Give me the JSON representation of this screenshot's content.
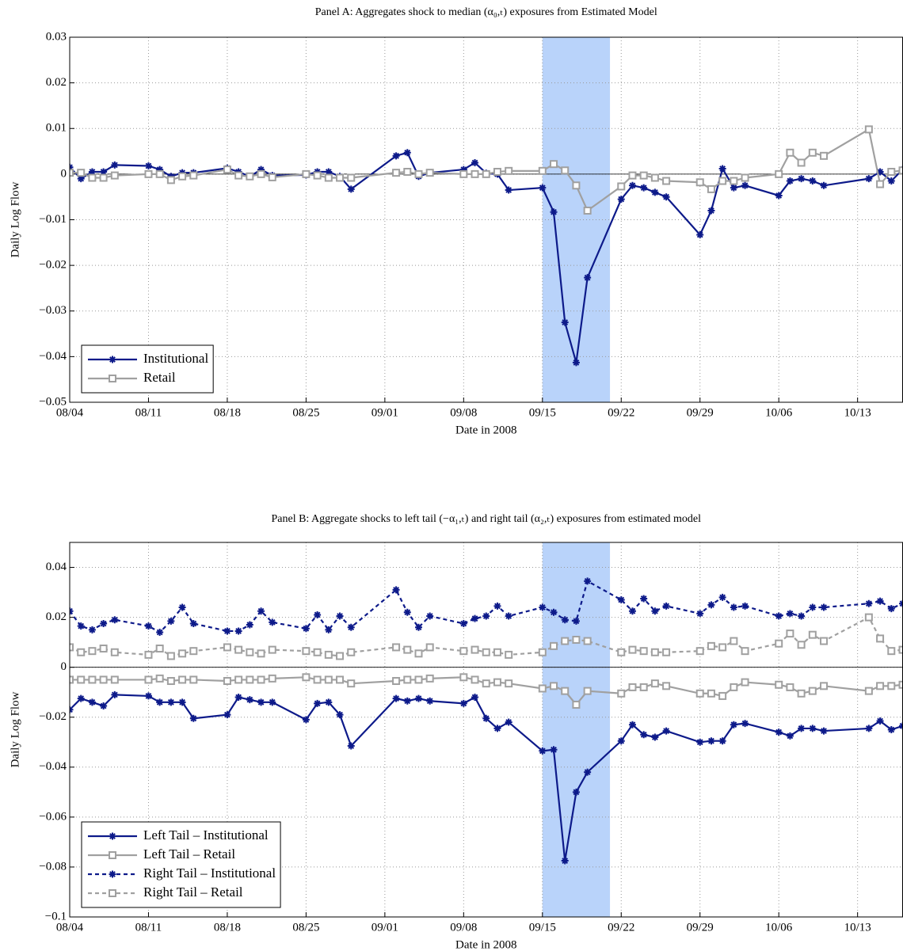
{
  "chart_data": [
    {
      "type": "line",
      "title": "Panel A: Aggregates shock to median (α₀,ₜ) exposures from Estimated Model",
      "x_label": "Date in 2008",
      "y_label": "Daily Log Flow",
      "x": [
        0,
        1,
        2,
        3,
        4,
        7,
        8,
        9,
        10,
        11,
        14,
        15,
        16,
        17,
        18,
        21,
        22,
        23,
        24,
        25,
        29,
        30,
        31,
        32,
        35,
        36,
        37,
        38,
        39,
        42,
        43,
        44,
        45,
        46,
        49,
        50,
        51,
        52,
        53,
        56,
        57,
        58,
        59,
        60,
        63,
        64,
        65,
        66,
        67,
        71,
        72,
        73,
        74
      ],
      "xlim": [
        0,
        74
      ],
      "xticks": [
        {
          "value": 0,
          "label": "08/04"
        },
        {
          "value": 7,
          "label": "08/11"
        },
        {
          "value": 14,
          "label": "08/18"
        },
        {
          "value": 21,
          "label": "08/25"
        },
        {
          "value": 28,
          "label": "09/01"
        },
        {
          "value": 35,
          "label": "09/08"
        },
        {
          "value": 42,
          "label": "09/15"
        },
        {
          "value": 49,
          "label": "09/22"
        },
        {
          "value": 56,
          "label": "09/29"
        },
        {
          "value": 63,
          "label": "10/06"
        },
        {
          "value": 70,
          "label": "10/13"
        }
      ],
      "ylim": [
        -0.05,
        0.03
      ],
      "yticks": [
        {
          "value": -0.05,
          "label": "−0.05"
        },
        {
          "value": -0.04,
          "label": "−0.04"
        },
        {
          "value": -0.03,
          "label": "−0.03"
        },
        {
          "value": -0.02,
          "label": "−0.02"
        },
        {
          "value": -0.01,
          "label": "−0.01"
        },
        0,
        0.01,
        0.02,
        0.03
      ],
      "grid": true,
      "legend": "lower left",
      "shade": [
        42,
        48
      ],
      "shade_color": "#b9d3fa",
      "series": [
        {
          "name": "Institutional",
          "color": "#0d1a8a",
          "marker": "star",
          "linestyle": "solid",
          "values": [
            0.0015,
            -0.001,
            0.0005,
            0.0005,
            0.002,
            0.0018,
            0.001,
            -0.0005,
            0.0003,
            0.0003,
            0.0013,
            0.0005,
            -0.0005,
            0.001,
            -0.0003,
            -0.0002,
            0.0005,
            0.0005,
            -0.0005,
            -0.0033,
            0.004,
            0.0047,
            -0.0005,
            0.0003,
            0.001,
            0.0025,
            0.0002,
            0,
            -0.0035,
            -0.003,
            -0.0083,
            -0.0325,
            -0.0413,
            -0.0227,
            -0.0055,
            -0.0025,
            -0.003,
            -0.004,
            -0.005,
            -0.0133,
            -0.008,
            0.0012,
            -0.003,
            -0.0025,
            -0.0047,
            -0.0015,
            -0.001,
            -0.0015,
            -0.0025,
            -0.001,
            0.0005,
            -0.0015,
            0.001
          ]
        },
        {
          "name": "Retail",
          "color": "#a0a0a0",
          "marker": "square",
          "linestyle": "solid",
          "values": [
            0.0003,
            0.0003,
            -0.0008,
            -0.0008,
            -0.0003,
            0,
            0,
            -0.0013,
            -0.0005,
            -0.0003,
            0.001,
            -0.0003,
            -0.0005,
            0,
            -0.0007,
            0,
            -0.0003,
            -0.0008,
            -0.0008,
            -0.0008,
            0.0003,
            0.0005,
            0,
            0.0003,
            0,
            0,
            0,
            0.0005,
            0.0007,
            0.0007,
            0.0022,
            0.0008,
            -0.0025,
            -0.008,
            -0.0027,
            -0.0003,
            -0.0003,
            -0.0008,
            -0.0015,
            -0.0018,
            -0.0033,
            -0.0015,
            -0.0015,
            -0.0008,
            0,
            0.0047,
            0.0025,
            0.0047,
            0.004,
            0.0098,
            -0.0022,
            0.0005,
            0.0008
          ]
        }
      ]
    },
    {
      "type": "line",
      "title": "Panel B: Aggregate shocks to left tail (−α₁,ₜ) and right tail (α₂,ₜ) exposures from estimated model",
      "x_label": "Date in 2008",
      "y_label": "Daily Log Flow",
      "x": [
        0,
        1,
        2,
        3,
        4,
        7,
        8,
        9,
        10,
        11,
        14,
        15,
        16,
        17,
        18,
        21,
        22,
        23,
        24,
        25,
        29,
        30,
        31,
        32,
        35,
        36,
        37,
        38,
        39,
        42,
        43,
        44,
        45,
        46,
        49,
        50,
        51,
        52,
        53,
        56,
        57,
        58,
        59,
        60,
        63,
        64,
        65,
        66,
        67,
        71,
        72,
        73,
        74
      ],
      "xlim": [
        0,
        74
      ],
      "xticks": [
        {
          "value": 0,
          "label": "08/04"
        },
        {
          "value": 7,
          "label": "08/11"
        },
        {
          "value": 14,
          "label": "08/18"
        },
        {
          "value": 21,
          "label": "08/25"
        },
        {
          "value": 28,
          "label": "09/01"
        },
        {
          "value": 35,
          "label": "09/08"
        },
        {
          "value": 42,
          "label": "09/15"
        },
        {
          "value": 49,
          "label": "09/22"
        },
        {
          "value": 56,
          "label": "09/29"
        },
        {
          "value": 63,
          "label": "10/06"
        },
        {
          "value": 70,
          "label": "10/13"
        }
      ],
      "ylim": [
        -0.1,
        0.05
      ],
      "yticks": [
        {
          "value": -0.1,
          "label": "−0.1"
        },
        {
          "value": -0.08,
          "label": "−0.08"
        },
        {
          "value": -0.06,
          "label": "−0.06"
        },
        {
          "value": -0.04,
          "label": "−0.04"
        },
        {
          "value": -0.02,
          "label": "−0.02"
        },
        0,
        0.02,
        0.04
      ],
      "grid": true,
      "legend": "lower left",
      "shade": [
        42,
        48
      ],
      "shade_color": "#b9d3fa",
      "series": [
        {
          "name": "Left Tail – Institutional",
          "color": "#0d1a8a",
          "marker": "star",
          "linestyle": "solid",
          "values": [
            -0.017,
            -0.0125,
            -0.014,
            -0.0155,
            -0.011,
            -0.0115,
            -0.014,
            -0.014,
            -0.014,
            -0.0205,
            -0.019,
            -0.012,
            -0.013,
            -0.014,
            -0.014,
            -0.021,
            -0.0145,
            -0.014,
            -0.019,
            -0.0315,
            -0.0125,
            -0.0135,
            -0.0125,
            -0.0135,
            -0.0145,
            -0.012,
            -0.0205,
            -0.0245,
            -0.022,
            -0.0335,
            -0.033,
            -0.0775,
            -0.05,
            -0.042,
            -0.0295,
            -0.023,
            -0.027,
            -0.028,
            -0.0255,
            -0.03,
            -0.0295,
            -0.0295,
            -0.023,
            -0.0225,
            -0.026,
            -0.0275,
            -0.0245,
            -0.0245,
            -0.0255,
            -0.0245,
            -0.0215,
            -0.025,
            -0.0235
          ]
        },
        {
          "name": "Left Tail – Retail",
          "color": "#a0a0a0",
          "marker": "square",
          "linestyle": "solid",
          "values": [
            -0.005,
            -0.005,
            -0.005,
            -0.005,
            -0.005,
            -0.005,
            -0.0045,
            -0.0055,
            -0.005,
            -0.005,
            -0.0055,
            -0.005,
            -0.005,
            -0.005,
            -0.0045,
            -0.004,
            -0.005,
            -0.005,
            -0.005,
            -0.0065,
            -0.0055,
            -0.005,
            -0.005,
            -0.0045,
            -0.004,
            -0.005,
            -0.0065,
            -0.006,
            -0.0065,
            -0.0085,
            -0.0075,
            -0.0095,
            -0.015,
            -0.0095,
            -0.0105,
            -0.008,
            -0.008,
            -0.0065,
            -0.0075,
            -0.0105,
            -0.0105,
            -0.0115,
            -0.008,
            -0.006,
            -0.007,
            -0.008,
            -0.0105,
            -0.0095,
            -0.0075,
            -0.0095,
            -0.0075,
            -0.0075,
            -0.007
          ]
        },
        {
          "name": "Right Tail – Institutional",
          "color": "#0d1a8a",
          "marker": "star",
          "linestyle": "dashed",
          "values": [
            0.0225,
            0.0165,
            0.015,
            0.0175,
            0.019,
            0.0165,
            0.014,
            0.0185,
            0.024,
            0.0175,
            0.0145,
            0.0145,
            0.017,
            0.0225,
            0.018,
            0.0155,
            0.021,
            0.015,
            0.0205,
            0.016,
            0.031,
            0.022,
            0.016,
            0.0205,
            0.0175,
            0.0195,
            0.0205,
            0.0245,
            0.0205,
            0.024,
            0.022,
            0.019,
            0.0185,
            0.0345,
            0.027,
            0.0225,
            0.0275,
            0.0225,
            0.0245,
            0.0215,
            0.025,
            0.028,
            0.024,
            0.0245,
            0.0205,
            0.0215,
            0.0205,
            0.024,
            0.024,
            0.0255,
            0.0265,
            0.0235,
            0.0255
          ]
        },
        {
          "name": "Right Tail – Retail",
          "color": "#a0a0a0",
          "marker": "square",
          "linestyle": "dashed",
          "values": [
            0.008,
            0.006,
            0.0065,
            0.0075,
            0.006,
            0.005,
            0.0075,
            0.0045,
            0.0055,
            0.0065,
            0.008,
            0.007,
            0.006,
            0.0055,
            0.007,
            0.0065,
            0.006,
            0.005,
            0.0045,
            0.006,
            0.008,
            0.007,
            0.0055,
            0.008,
            0.0065,
            0.007,
            0.006,
            0.006,
            0.005,
            0.006,
            0.0085,
            0.0105,
            0.011,
            0.0105,
            0.006,
            0.007,
            0.0065,
            0.006,
            0.006,
            0.0065,
            0.0085,
            0.008,
            0.0105,
            0.0065,
            0.0095,
            0.0135,
            0.009,
            0.013,
            0.0105,
            0.02,
            0.0115,
            0.0065,
            0.007
          ]
        }
      ]
    }
  ]
}
